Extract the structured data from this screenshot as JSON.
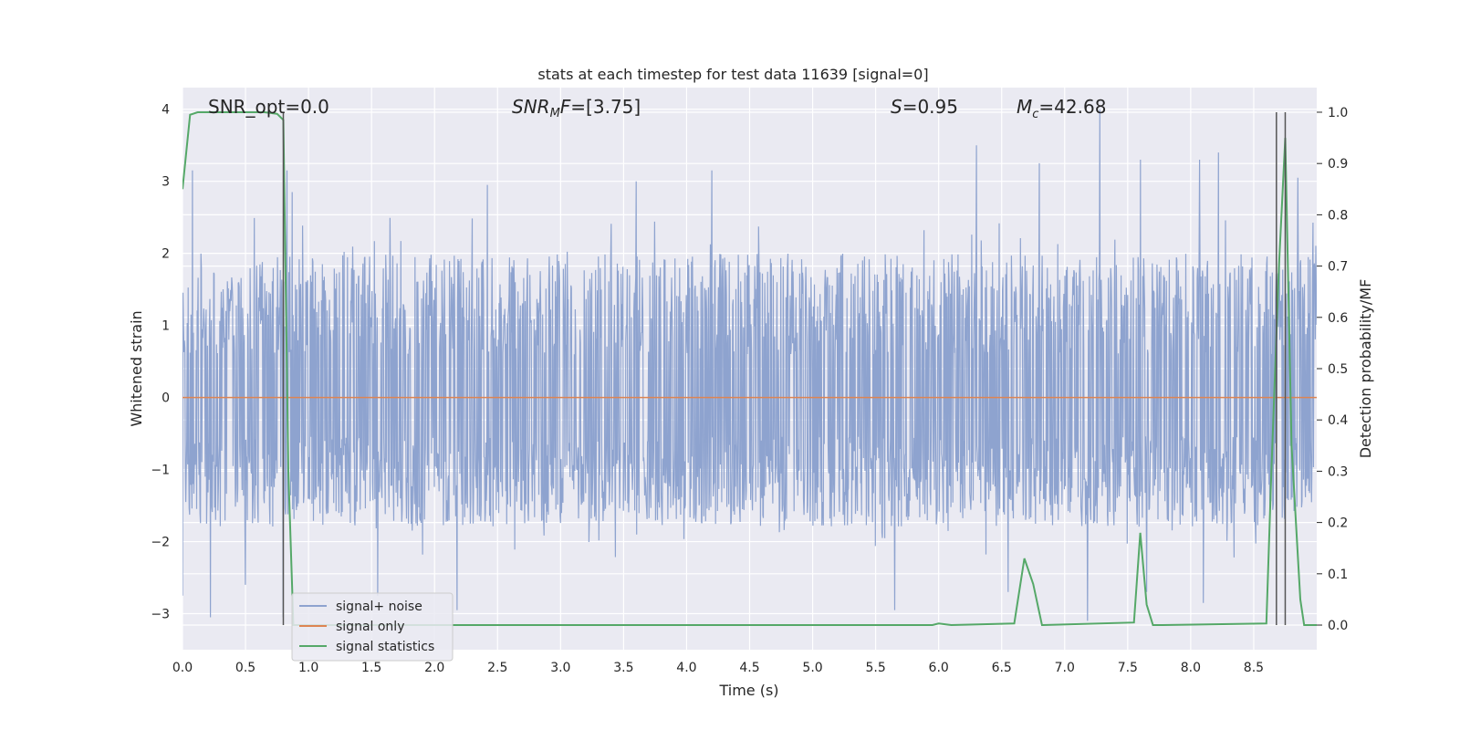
{
  "chart_data": {
    "type": "line",
    "title": "stats at each timestep for test data 11639 [signal=0]",
    "xlabel": "Time (s)",
    "ylabel": "Whitened strain",
    "ylabel_right": "Detection probability/MF",
    "xlim": [
      0,
      9.0
    ],
    "ylim": [
      -3.5,
      4.3
    ],
    "ylim_right": [
      -0.048,
      1.048
    ],
    "x_ticks": [
      "0.0",
      "0.5",
      "1.0",
      "1.5",
      "2.0",
      "2.5",
      "3.0",
      "3.5",
      "4.0",
      "4.5",
      "5.0",
      "5.5",
      "6.0",
      "6.5",
      "7.0",
      "7.5",
      "8.0",
      "8.5"
    ],
    "y_ticks": [
      "−3",
      "−2",
      "−1",
      "0",
      "1",
      "2",
      "3",
      "4"
    ],
    "y_ticks_right": [
      "0.0",
      "0.1",
      "0.2",
      "0.3",
      "0.4",
      "0.5",
      "0.6",
      "0.7",
      "0.8",
      "0.9",
      "1.0"
    ],
    "grid": true,
    "legend_position": "lower-left",
    "annotations": {
      "snr_opt": "SNR_opt=0.0",
      "snr_mf": "=[3.75]",
      "s_stat": "=0.95",
      "mc": "=42.68"
    },
    "series": [
      {
        "name": "signal+ noise",
        "color": "#8ea3cf",
        "kind": "noise",
        "typical_range": [
          -1.8,
          2.0
        ],
        "peaks": [
          {
            "x": 0.08,
            "y": 3.15
          },
          {
            "x": 0.83,
            "y": 3.15
          },
          {
            "x": 0.87,
            "y": 2.85
          },
          {
            "x": 2.42,
            "y": 2.95
          },
          {
            "x": 3.6,
            "y": 3.0
          },
          {
            "x": 4.2,
            "y": 3.15
          },
          {
            "x": 6.3,
            "y": 3.5
          },
          {
            "x": 6.8,
            "y": 3.25
          },
          {
            "x": 7.28,
            "y": 4.0
          },
          {
            "x": 7.6,
            "y": 3.3
          },
          {
            "x": 8.07,
            "y": 3.3
          },
          {
            "x": 8.22,
            "y": 3.4
          },
          {
            "x": 8.85,
            "y": 3.05
          }
        ],
        "troughs": [
          {
            "x": 0.0,
            "y": -2.75
          },
          {
            "x": 0.22,
            "y": -3.05
          },
          {
            "x": 0.5,
            "y": -2.6
          },
          {
            "x": 0.8,
            "y": -3.05
          },
          {
            "x": 1.55,
            "y": -2.75
          },
          {
            "x": 2.18,
            "y": -2.95
          },
          {
            "x": 5.65,
            "y": -2.95
          },
          {
            "x": 6.55,
            "y": -2.7
          },
          {
            "x": 7.18,
            "y": -3.1
          },
          {
            "x": 7.65,
            "y": -2.7
          },
          {
            "x": 8.1,
            "y": -2.85
          }
        ]
      },
      {
        "name": "signal only",
        "color": "#dd8452",
        "x": [
          0,
          9.0
        ],
        "y": [
          0,
          0
        ]
      },
      {
        "name": "signal statistics",
        "color": "#55a868",
        "axis": "right",
        "x": [
          0.0,
          0.06,
          0.12,
          0.5,
          0.65,
          0.75,
          0.8,
          0.84,
          0.88,
          1.0,
          5.95,
          6.0,
          6.1,
          6.6,
          6.68,
          6.75,
          6.82,
          7.55,
          7.6,
          7.65,
          7.7,
          7.78,
          8.6,
          8.64,
          8.7,
          8.75,
          8.8,
          8.87,
          8.9,
          9.0
        ],
        "y": [
          0.85,
          0.995,
          1.0,
          1.0,
          1.0,
          0.997,
          0.985,
          0.3,
          0.0,
          0.0,
          0.0,
          0.003,
          0.0,
          0.003,
          0.13,
          0.08,
          0.0,
          0.005,
          0.18,
          0.04,
          0.0,
          0.0,
          0.003,
          0.3,
          0.7,
          0.95,
          0.35,
          0.05,
          0.0,
          0.0
        ]
      }
    ],
    "vertical_lines": [
      0.8,
      8.68,
      8.75
    ]
  }
}
